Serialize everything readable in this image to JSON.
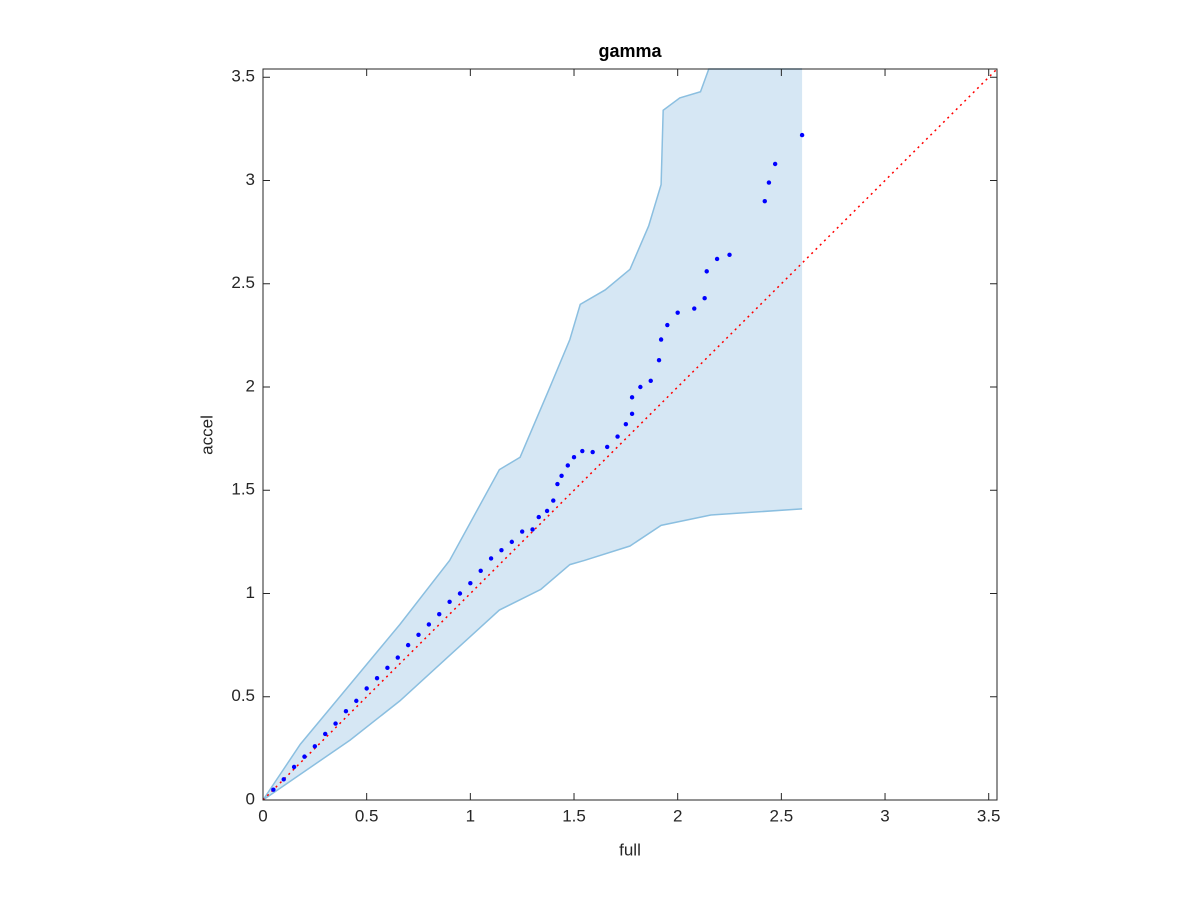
{
  "chart_data": {
    "type": "scatter",
    "title": "gamma",
    "xlabel": "full",
    "ylabel": "accel",
    "xlim": [
      0,
      3.54
    ],
    "ylim": [
      0,
      3.54
    ],
    "xticks": [
      0,
      0.5,
      1,
      1.5,
      2,
      2.5,
      3,
      3.5
    ],
    "yticks": [
      0,
      0.5,
      1,
      1.5,
      2,
      2.5,
      3,
      3.5
    ],
    "series": [
      {
        "color": "#0000ff",
        "x": [
          0.05,
          0.1,
          0.15,
          0.2,
          0.25,
          0.3,
          0.35,
          0.4,
          0.45,
          0.5,
          0.55,
          0.6,
          0.65,
          0.7,
          0.75,
          0.8,
          0.85,
          0.9,
          0.95,
          1.0,
          1.05,
          1.1,
          1.15,
          1.2,
          1.25,
          1.3,
          1.33,
          1.37,
          1.4,
          1.42,
          1.44,
          1.47,
          1.5,
          1.54,
          1.59,
          1.66,
          1.71,
          1.75,
          1.78,
          1.78,
          1.82,
          1.87,
          1.91,
          1.92,
          1.95,
          2.0,
          2.08,
          2.13,
          2.14,
          2.19,
          2.25,
          2.42,
          2.44,
          2.47,
          2.6
        ],
        "values": [
          0.05,
          0.1,
          0.16,
          0.21,
          0.26,
          0.32,
          0.37,
          0.43,
          0.48,
          0.54,
          0.59,
          0.64,
          0.69,
          0.75,
          0.8,
          0.85,
          0.9,
          0.96,
          1.0,
          1.05,
          1.11,
          1.17,
          1.21,
          1.25,
          1.3,
          1.31,
          1.37,
          1.4,
          1.45,
          1.53,
          1.57,
          1.62,
          1.66,
          1.69,
          1.685,
          1.71,
          1.76,
          1.82,
          1.87,
          1.95,
          2.0,
          2.03,
          2.13,
          2.23,
          2.3,
          2.36,
          2.38,
          2.43,
          2.56,
          2.62,
          2.64,
          2.9,
          2.99,
          3.08,
          3.22
        ]
      }
    ],
    "band": {
      "color": "#d6e7f4",
      "edge_color": "#8bbfe0",
      "upper": {
        "x": [
          0,
          0.18,
          0.42,
          0.66,
          0.9,
          1.14,
          1.24,
          1.38,
          1.48,
          1.53,
          1.65,
          1.77,
          1.86,
          1.92,
          1.93,
          2.01,
          2.11,
          2.15,
          2.6
        ],
        "values": [
          0,
          0.27,
          0.56,
          0.85,
          1.16,
          1.6,
          1.66,
          1.99,
          2.23,
          2.4,
          2.47,
          2.57,
          2.78,
          2.98,
          3.34,
          3.4,
          3.43,
          3.54,
          3.54
        ]
      },
      "lower": {
        "x": [
          0,
          0.42,
          0.66,
          0.9,
          1.14,
          1.34,
          1.48,
          1.55,
          1.77,
          1.92,
          2.16,
          2.6
        ],
        "values": [
          0,
          0.29,
          0.48,
          0.7,
          0.92,
          1.02,
          1.14,
          1.16,
          1.23,
          1.33,
          1.38,
          1.41
        ]
      }
    },
    "reference_line": {
      "color": "#ff0000",
      "x": [
        0,
        3.54
      ],
      "values": [
        0,
        3.54
      ]
    }
  }
}
